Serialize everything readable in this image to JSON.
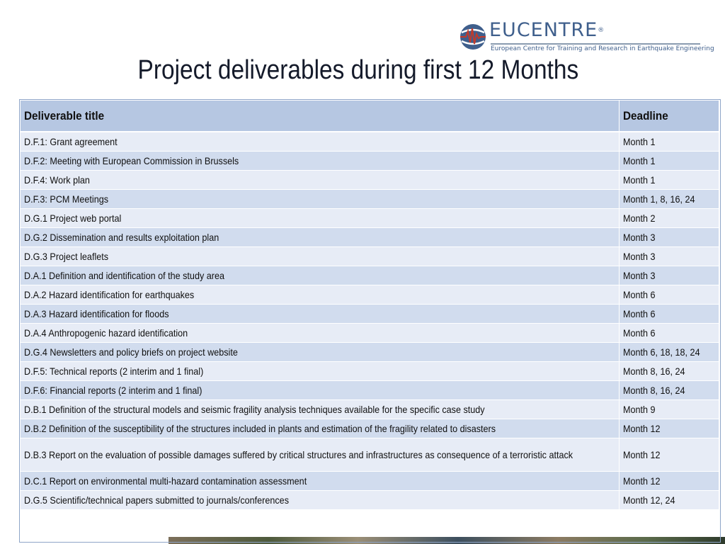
{
  "logo": {
    "wordmark": "EUCENTRE",
    "registered": "®",
    "subtitle": "European Centre for Training and Research in Earthquake Engineering",
    "icon": "seismograph-globe-icon"
  },
  "title": "Project deliverables during first 12 Months",
  "table": {
    "headers": {
      "title": "Deliverable title",
      "deadline": "Deadline"
    },
    "rows": [
      {
        "title": "D.F.1: Grant agreement",
        "deadline": "Month 1"
      },
      {
        "title": "D.F.2: Meeting with European Commission in Brussels",
        "deadline": "Month 1"
      },
      {
        "title": "D.F.4: Work plan",
        "deadline": "Month 1"
      },
      {
        "title": "D.F.3: PCM Meetings",
        "deadline": "Month 1, 8, 16, 24"
      },
      {
        "title": "D.G.1 Project web portal",
        "deadline": "Month 2"
      },
      {
        "title": "D.G.2 Dissemination and results exploitation plan",
        "deadline": "Month 3"
      },
      {
        "title": "D.G.3 Project leaflets",
        "deadline": "Month 3"
      },
      {
        "title": "D.A.1 Definition and identification of the study area",
        "deadline": "Month 3"
      },
      {
        "title": "D.A.2 Hazard identification for earthquakes",
        "deadline": "Month 6"
      },
      {
        "title": "D.A.3 Hazard identification for floods",
        "deadline": "Month 6"
      },
      {
        "title": "D.A.4 Anthropogenic hazard identification",
        "deadline": "Month 6"
      },
      {
        "title": "D.G.4 Newsletters and policy briefs on project website",
        "deadline": "Month 6, 18, 18, 24"
      },
      {
        "title": "D.F.5: Technical reports (2 interim and 1 final)",
        "deadline": "Month 8, 16, 24"
      },
      {
        "title": "D.F.6: Financial reports (2 interim and 1 final)",
        "deadline": "Month 8, 16, 24"
      },
      {
        "title": "D.B.1 Definition of the structural models and seismic fragility analysis techniques available for the specific case study",
        "deadline": "Month 9"
      },
      {
        "title": "D.B.2 Definition of the susceptibility of the structures included in plants and estimation of the fragility related to disasters",
        "deadline": "Month 12"
      },
      {
        "title": "D.B.3 Report on the evaluation of possible damages suffered by critical structures and infrastructures as consequence of a terroristic attack",
        "deadline": "Month 12"
      },
      {
        "title": "D.C.1 Report on environmental multi-hazard contamination assessment",
        "deadline": "Month 12"
      },
      {
        "title": "D.G.5 Scientific/technical papers submitted to journals/conferences",
        "deadline": "Month 12, 24"
      }
    ]
  },
  "colors": {
    "header_fill": "#b6c7e2",
    "row_light": "#e7ecf6",
    "row_dark": "#d1dcee",
    "brand": "#3f5f8c"
  }
}
